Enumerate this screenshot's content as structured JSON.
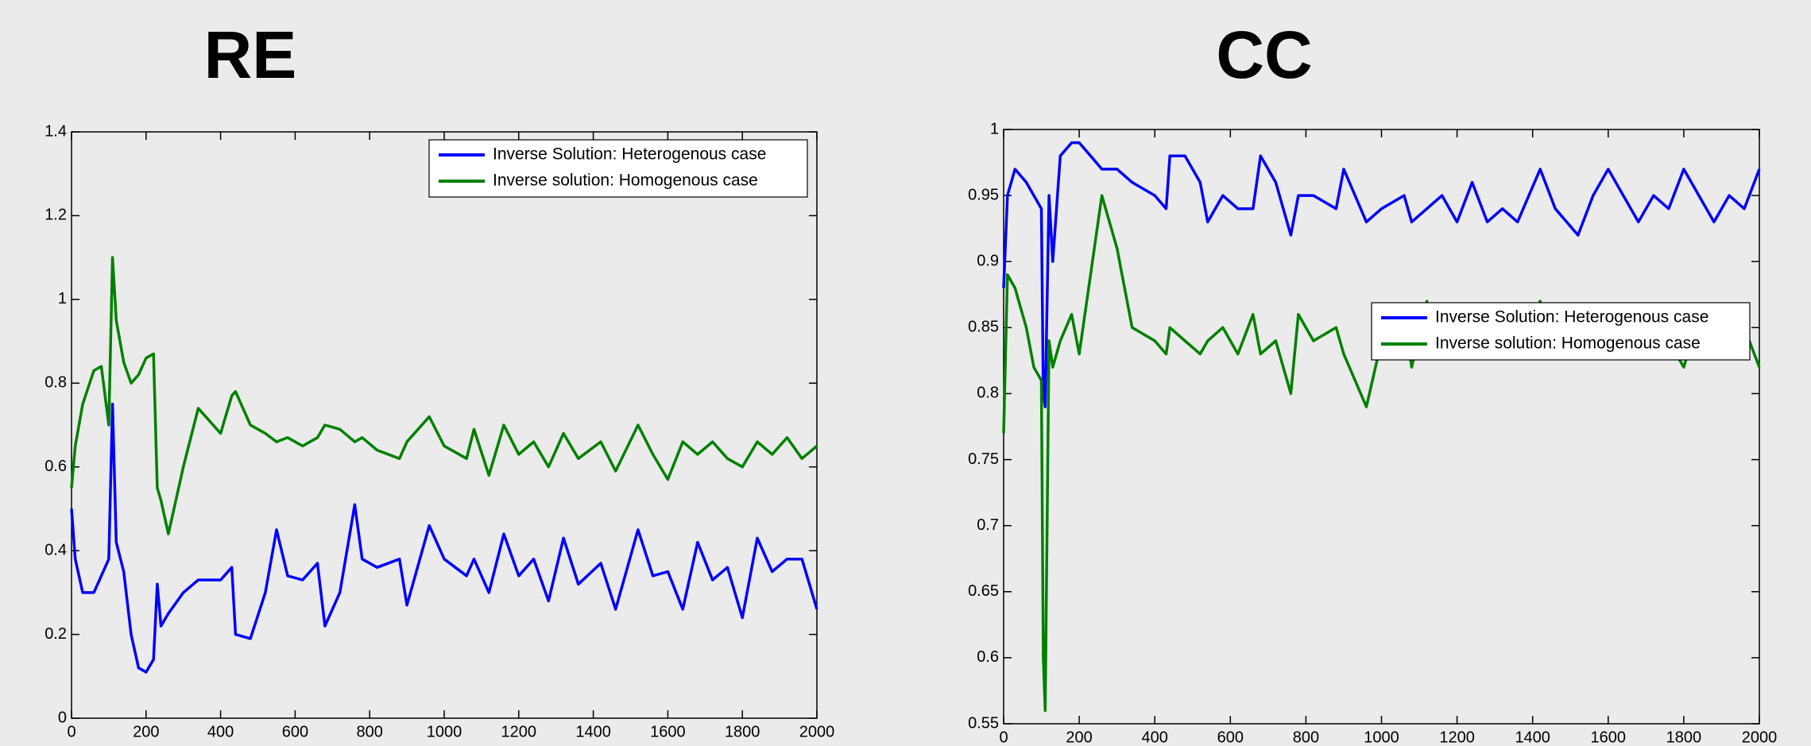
{
  "chart_data": [
    {
      "type": "line",
      "title": "RE",
      "x": [
        0,
        10,
        30,
        60,
        80,
        100,
        110,
        120,
        140,
        160,
        180,
        200,
        220,
        230,
        240,
        260,
        300,
        340,
        400,
        430,
        440,
        480,
        520,
        550,
        580,
        620,
        660,
        680,
        720,
        760,
        780,
        820,
        880,
        900,
        960,
        1000,
        1060,
        1080,
        1120,
        1160,
        1200,
        1240,
        1280,
        1320,
        1360,
        1420,
        1460,
        1520,
        1560,
        1600,
        1640,
        1680,
        1720,
        1760,
        1800,
        1840,
        1880,
        1920,
        1960,
        2000
      ],
      "series": [
        {
          "name": "Inverse Solution: Heterogenous case",
          "color": "#0000ff",
          "values": [
            0.5,
            0.38,
            0.3,
            0.3,
            0.34,
            0.38,
            0.75,
            0.42,
            0.35,
            0.2,
            0.12,
            0.11,
            0.14,
            0.32,
            0.22,
            0.25,
            0.3,
            0.33,
            0.33,
            0.36,
            0.2,
            0.19,
            0.3,
            0.45,
            0.34,
            0.33,
            0.37,
            0.22,
            0.3,
            0.51,
            0.38,
            0.36,
            0.38,
            0.27,
            0.46,
            0.38,
            0.34,
            0.38,
            0.3,
            0.44,
            0.34,
            0.38,
            0.28,
            0.43,
            0.32,
            0.37,
            0.26,
            0.45,
            0.34,
            0.35,
            0.26,
            0.42,
            0.33,
            0.36,
            0.24,
            0.43,
            0.35,
            0.38,
            0.38,
            0.26
          ]
        },
        {
          "name": "Inverse solution: Homogenous case",
          "color": "#008000",
          "values": [
            0.55,
            0.65,
            0.75,
            0.83,
            0.84,
            0.7,
            1.1,
            0.95,
            0.85,
            0.8,
            0.82,
            0.86,
            0.87,
            0.55,
            0.52,
            0.44,
            0.6,
            0.74,
            0.68,
            0.77,
            0.78,
            0.7,
            0.68,
            0.66,
            0.67,
            0.65,
            0.67,
            0.7,
            0.69,
            0.66,
            0.67,
            0.64,
            0.62,
            0.66,
            0.72,
            0.65,
            0.62,
            0.69,
            0.58,
            0.7,
            0.63,
            0.66,
            0.6,
            0.68,
            0.62,
            0.66,
            0.59,
            0.7,
            0.63,
            0.57,
            0.66,
            0.63,
            0.66,
            0.62,
            0.6,
            0.66,
            0.63,
            0.67,
            0.62,
            0.65
          ]
        }
      ],
      "xlim": [
        0,
        2000
      ],
      "xticks": [
        0,
        200,
        400,
        600,
        800,
        1000,
        1200,
        1400,
        1600,
        1800,
        2000
      ],
      "ylim": [
        0,
        1.4
      ],
      "yticks": [
        0,
        0.2,
        0.4,
        0.6,
        0.8,
        1,
        1.2,
        1.4
      ],
      "legend": "upper right"
    },
    {
      "type": "line",
      "title": "CC",
      "x": [
        0,
        10,
        30,
        60,
        80,
        100,
        105,
        110,
        120,
        130,
        150,
        180,
        200,
        230,
        260,
        300,
        340,
        400,
        430,
        440,
        480,
        520,
        540,
        580,
        620,
        660,
        680,
        720,
        760,
        780,
        820,
        880,
        900,
        960,
        1000,
        1060,
        1080,
        1120,
        1160,
        1200,
        1240,
        1280,
        1320,
        1360,
        1420,
        1460,
        1520,
        1560,
        1600,
        1640,
        1680,
        1720,
        1760,
        1800,
        1840,
        1880,
        1920,
        1960,
        2000
      ],
      "series": [
        {
          "name": "Inverse Solution: Heterogenous case",
          "color": "#0000ff",
          "values": [
            0.88,
            0.95,
            0.97,
            0.96,
            0.95,
            0.94,
            0.8,
            0.79,
            0.95,
            0.9,
            0.98,
            0.99,
            0.99,
            0.98,
            0.97,
            0.97,
            0.96,
            0.95,
            0.94,
            0.98,
            0.98,
            0.96,
            0.93,
            0.95,
            0.94,
            0.94,
            0.98,
            0.96,
            0.92,
            0.95,
            0.95,
            0.94,
            0.97,
            0.93,
            0.94,
            0.95,
            0.93,
            0.94,
            0.95,
            0.93,
            0.96,
            0.93,
            0.94,
            0.93,
            0.97,
            0.94,
            0.92,
            0.95,
            0.97,
            0.95,
            0.93,
            0.95,
            0.94,
            0.97,
            0.95,
            0.93,
            0.95,
            0.94,
            0.97
          ]
        },
        {
          "name": "Inverse solution: Homogenous case",
          "color": "#008000",
          "values": [
            0.77,
            0.89,
            0.88,
            0.85,
            0.82,
            0.81,
            0.6,
            0.56,
            0.84,
            0.82,
            0.84,
            0.86,
            0.83,
            0.89,
            0.95,
            0.91,
            0.85,
            0.84,
            0.83,
            0.85,
            0.84,
            0.83,
            0.84,
            0.85,
            0.83,
            0.86,
            0.83,
            0.84,
            0.8,
            0.86,
            0.84,
            0.85,
            0.83,
            0.79,
            0.84,
            0.86,
            0.82,
            0.87,
            0.83,
            0.86,
            0.83,
            0.86,
            0.84,
            0.83,
            0.87,
            0.84,
            0.84,
            0.85,
            0.86,
            0.83,
            0.86,
            0.83,
            0.84,
            0.82,
            0.86,
            0.84,
            0.84,
            0.85,
            0.82
          ]
        }
      ],
      "xlim": [
        0,
        2000
      ],
      "xticks": [
        0,
        200,
        400,
        600,
        800,
        1000,
        1200,
        1400,
        1600,
        1800,
        2000
      ],
      "ylim": [
        0.55,
        1
      ],
      "yticks": [
        0.55,
        0.6,
        0.65,
        0.7,
        0.75,
        0.8,
        0.85,
        0.9,
        0.95,
        1
      ],
      "legend": "center right"
    }
  ]
}
